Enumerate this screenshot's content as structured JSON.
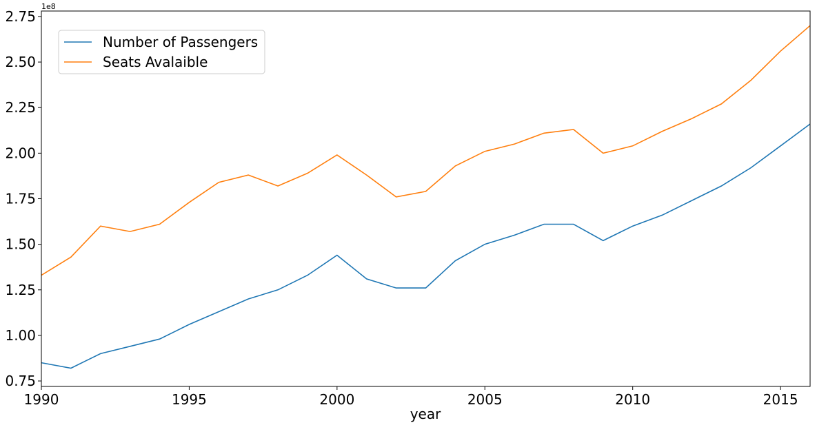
{
  "chart_data": {
    "type": "line",
    "title": "",
    "xlabel": "year",
    "ylabel": "",
    "y_offset_label": "1e8",
    "xlim": [
      1990,
      2016
    ],
    "ylim": [
      0.72,
      2.78
    ],
    "x_ticks": [
      1990,
      1995,
      2000,
      2005,
      2010,
      2015
    ],
    "y_ticks": [
      "0.75",
      "1.00",
      "1.25",
      "1.50",
      "1.75",
      "2.00",
      "2.25",
      "2.50",
      "2.75"
    ],
    "grid": false,
    "legend_position": "upper-left",
    "x": [
      1990,
      1991,
      1992,
      1993,
      1994,
      1995,
      1996,
      1997,
      1998,
      1999,
      2000,
      2001,
      2002,
      2003,
      2004,
      2005,
      2006,
      2007,
      2008,
      2009,
      2010,
      2011,
      2012,
      2013,
      2014,
      2015,
      2016
    ],
    "series": [
      {
        "name": "Number of Passengers",
        "color": "#1f77b4",
        "values": [
          0.85,
          0.82,
          0.9,
          0.94,
          0.98,
          1.06,
          1.13,
          1.2,
          1.25,
          1.33,
          1.44,
          1.31,
          1.26,
          1.26,
          1.41,
          1.5,
          1.55,
          1.61,
          1.61,
          1.52,
          1.6,
          1.66,
          1.74,
          1.82,
          1.92,
          2.04,
          2.16
        ]
      },
      {
        "name": "Seats Avalaible",
        "color": "#ff7f0e",
        "values": [
          1.33,
          1.43,
          1.6,
          1.57,
          1.61,
          1.73,
          1.84,
          1.88,
          1.82,
          1.89,
          1.99,
          1.88,
          1.76,
          1.79,
          1.93,
          2.01,
          2.05,
          2.11,
          2.13,
          2.0,
          2.04,
          2.12,
          2.19,
          2.27,
          2.4,
          2.56,
          2.7
        ]
      }
    ]
  }
}
